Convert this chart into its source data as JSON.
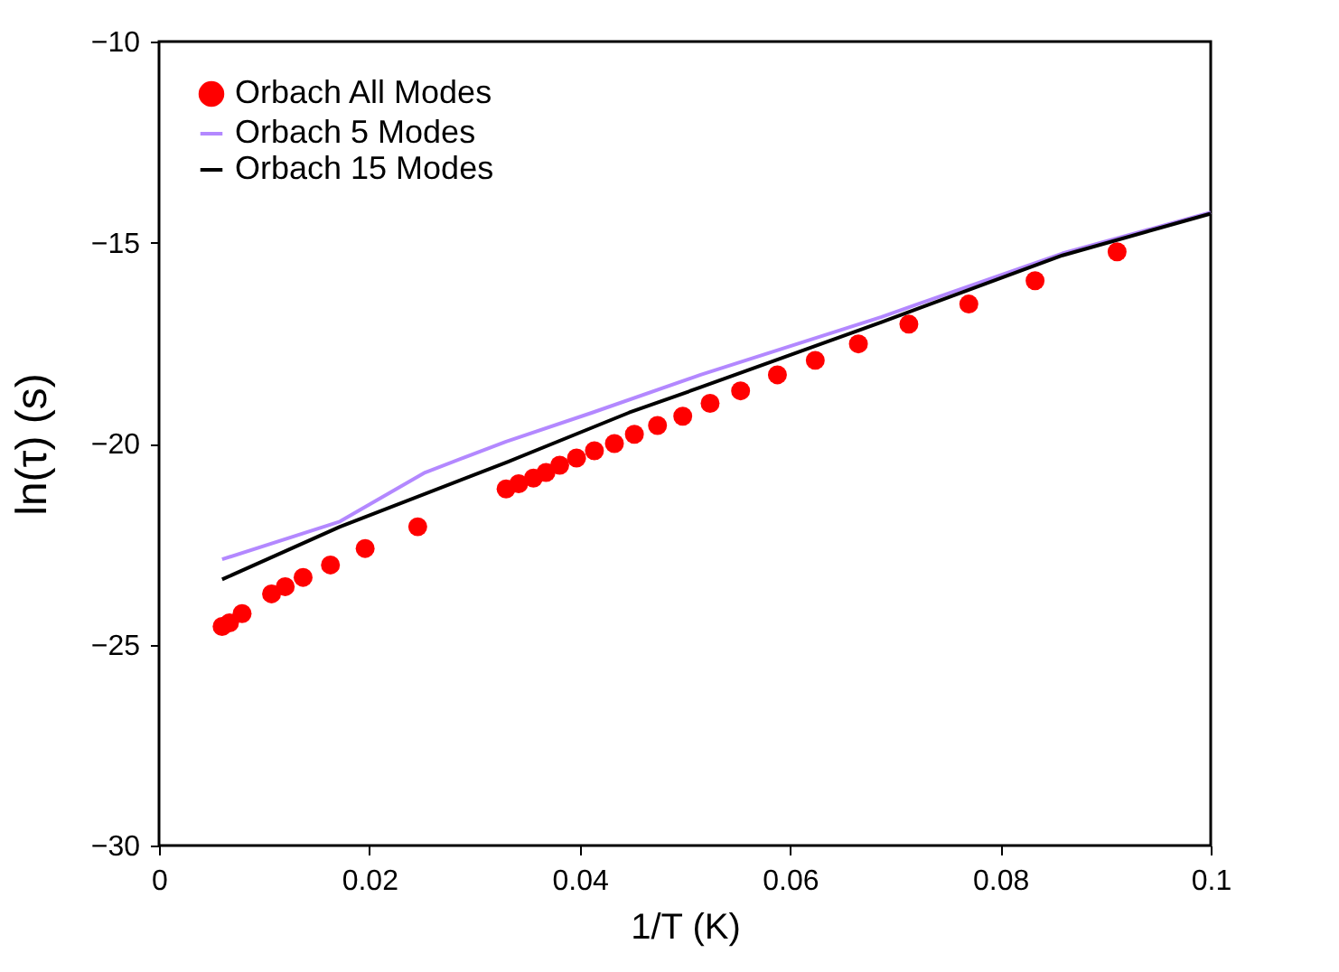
{
  "chart_data": {
    "type": "scatter",
    "xlabel": "1/T (K)",
    "ylabel": "ln(τ) (s)",
    "xlim": [
      0,
      0.1
    ],
    "xticks": [
      0,
      0.02,
      0.04,
      0.06,
      0.08,
      0.1
    ],
    "ylim": [
      -30,
      -10
    ],
    "yticks": [
      -30,
      -25,
      -20,
      -15,
      -10
    ],
    "grid": false,
    "legend": "top left",
    "series": [
      {
        "name": "Orbach All Modes",
        "marker": "circle",
        "color": "#ff0000",
        "x": [
          0.006,
          0.0067,
          0.0079,
          0.0107,
          0.012,
          0.0137,
          0.0163,
          0.0196,
          0.0246,
          0.033,
          0.0342,
          0.0356,
          0.0368,
          0.0381,
          0.0397,
          0.0414,
          0.0433,
          0.0452,
          0.0474,
          0.0498,
          0.0524,
          0.0553,
          0.0588,
          0.0624,
          0.0665,
          0.0713,
          0.077,
          0.0833,
          0.0911
        ],
        "values": [
          -24.55,
          -24.46,
          -24.23,
          -23.74,
          -23.56,
          -23.33,
          -23.02,
          -22.61,
          -22.07,
          -21.13,
          -21.0,
          -20.86,
          -20.72,
          -20.54,
          -20.36,
          -20.18,
          -20.0,
          -19.77,
          -19.55,
          -19.32,
          -19.0,
          -18.69,
          -18.29,
          -17.93,
          -17.52,
          -17.03,
          -16.53,
          -15.95,
          -15.23
        ]
      },
      {
        "name": "Orbach 5 Modes",
        "type": "line",
        "line_style": "solid",
        "color": "#b388ff",
        "x": [
          0.006,
          0.0172,
          0.0253,
          0.033,
          0.0412,
          0.0515,
          0.0687,
          0.0859,
          0.1
        ],
        "values": [
          -22.88,
          -21.94,
          -20.72,
          -19.95,
          -19.23,
          -18.29,
          -16.85,
          -15.27,
          -14.25
        ]
      },
      {
        "name": "Orbach 15 Modes",
        "type": "line",
        "line_style": "solid",
        "color": "#000000",
        "x": [
          0.006,
          0.0172,
          0.0332,
          0.0447,
          0.0515,
          0.0687,
          0.0859,
          0.1
        ],
        "values": [
          -23.38,
          -22.07,
          -20.45,
          -19.23,
          -18.6,
          -16.98,
          -15.32,
          -14.28
        ]
      }
    ]
  }
}
